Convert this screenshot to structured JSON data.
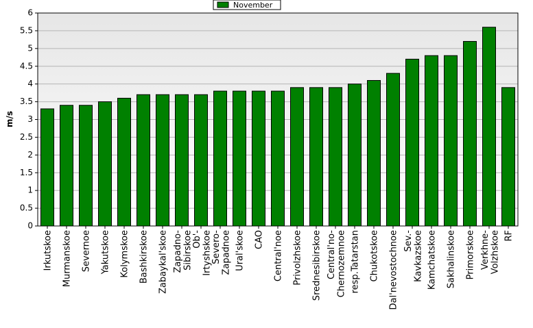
{
  "chart_data": {
    "type": "bar",
    "legend": "November",
    "color": "#008000",
    "ylabel": "m/s",
    "categories": [
      "Irkutskoe",
      "Murmanskoe",
      "Severnoe",
      "Yakutskoe",
      "Kolymskoe",
      "Bashkirskoe",
      "Zabaykal'skoe",
      "Zapadno-Sibirskoe",
      "Ob'-Irtyshskoe",
      "Severo-Zapadnoe",
      "Ural'skoe",
      "CAO",
      "Central'noe",
      "Privolzhskoe",
      "Srednesibirskoe",
      "Central'no-Chernozemnoe",
      "resp.Tatarstan",
      "Chukotskoe",
      "Dal'nevostochnoe",
      "Sev.-Kavkazskoe",
      "Kamchatskoe",
      "Sakhalinskoe",
      "Primorskoe",
      "Verkhne-Volzhskoe",
      "RF"
    ],
    "values": [
      3.3,
      3.4,
      3.4,
      3.5,
      3.6,
      3.7,
      3.7,
      3.7,
      3.7,
      3.8,
      3.8,
      3.8,
      3.8,
      3.9,
      3.9,
      3.9,
      4.0,
      4.1,
      4.3,
      4.7,
      4.8,
      4.8,
      5.2,
      5.6,
      3.9
    ],
    "ylim": [
      0,
      6
    ],
    "yticks": [
      0,
      0.5,
      1,
      1.5,
      2,
      2.5,
      3,
      3.5,
      4,
      4.5,
      5,
      5.5,
      6
    ],
    "grid": true
  }
}
